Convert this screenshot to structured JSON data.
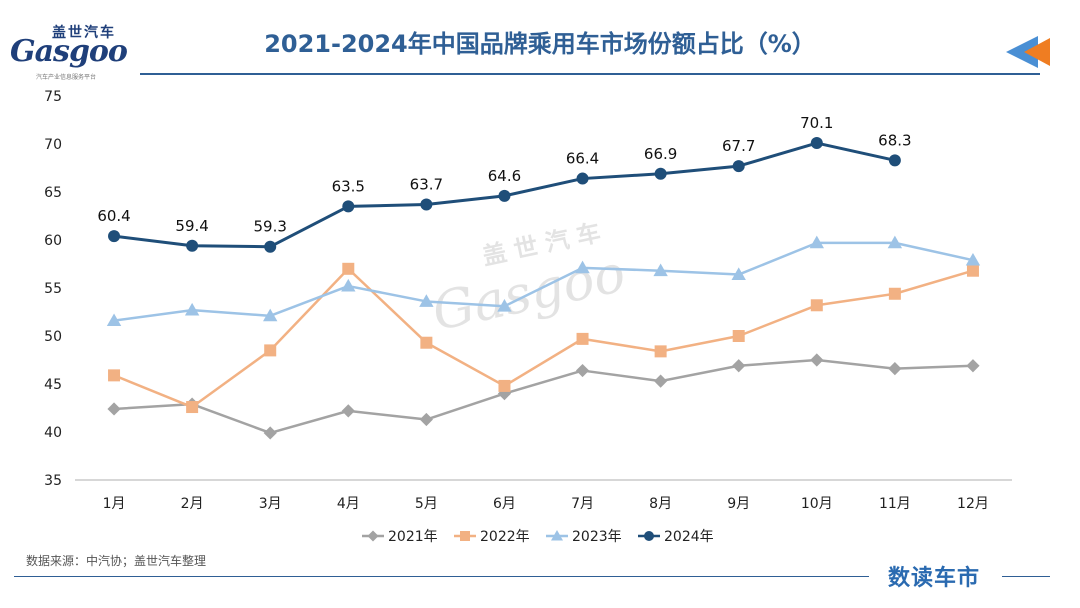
{
  "header": {
    "title": "2021-2024年中国品牌乘用车市场份额占比（%）"
  },
  "logo": {
    "cn": "盖世汽车",
    "en": "Gasgoo",
    "sub": "汽车产业信息服务平台"
  },
  "watermark": {
    "cn": "盖世汽车",
    "en": "Gasgoo"
  },
  "footer": {
    "source": "数据来源：中汽协；盖世汽车整理",
    "brand": "数读车市"
  },
  "colors": {
    "accent": "#2f5f95",
    "s2021": "#a3a3a3",
    "s2022": "#f2b183",
    "s2023": "#9dc3e6",
    "s2024": "#1f4e79",
    "arrow_blue": "#4a8fd4",
    "arrow_orange": "#ef7d22"
  },
  "chart_data": {
    "type": "line",
    "title": "2021-2024年中国品牌乘用车市场份额占比（%）",
    "categories": [
      "1月",
      "2月",
      "3月",
      "4月",
      "5月",
      "6月",
      "7月",
      "8月",
      "9月",
      "10月",
      "11月",
      "12月"
    ],
    "ylim": [
      35,
      75
    ],
    "yticks": [
      35,
      40,
      45,
      50,
      55,
      60,
      65,
      70,
      75
    ],
    "grid": false,
    "legend": "bottom",
    "series": [
      {
        "name": "2021年",
        "marker": "diamond",
        "color": "#a3a3a3",
        "show_labels": false,
        "values": [
          42.4,
          42.9,
          39.9,
          42.2,
          41.3,
          44.0,
          46.4,
          45.3,
          46.9,
          47.5,
          46.6,
          46.9
        ]
      },
      {
        "name": "2022年",
        "marker": "square",
        "color": "#f2b183",
        "show_labels": false,
        "values": [
          45.9,
          42.6,
          48.5,
          57.0,
          49.3,
          44.8,
          49.7,
          48.4,
          50.0,
          53.2,
          54.4,
          56.8
        ]
      },
      {
        "name": "2023年",
        "marker": "triangle",
        "color": "#9dc3e6",
        "show_labels": false,
        "values": [
          51.6,
          52.7,
          52.1,
          55.2,
          53.6,
          53.1,
          57.1,
          56.8,
          56.4,
          59.7,
          59.7,
          57.9
        ]
      },
      {
        "name": "2024年",
        "marker": "circle",
        "color": "#1f4e79",
        "show_labels": true,
        "values": [
          60.4,
          59.4,
          59.3,
          63.5,
          63.7,
          64.6,
          66.4,
          66.9,
          67.7,
          70.1,
          68.3,
          null
        ]
      }
    ]
  }
}
